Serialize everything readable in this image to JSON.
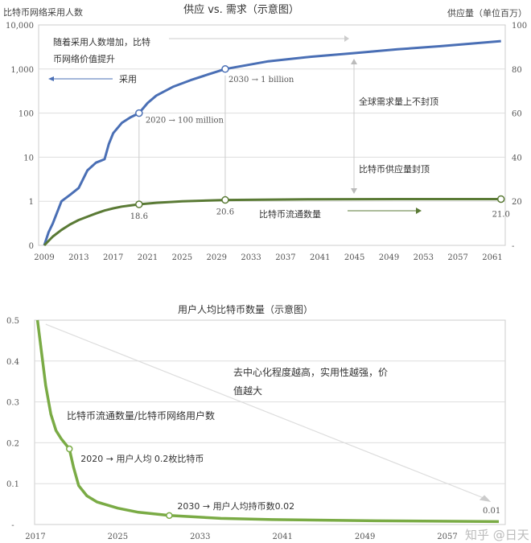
{
  "chart_data": [
    {
      "type": "line",
      "title": "供应 vs. 需求（示意图）",
      "ylabel_left": "比特币网络采用人数",
      "ylabel_right": "供应量（单位百万）",
      "x_ticks": [
        "2009",
        "2013",
        "2017",
        "2021",
        "2025",
        "2029",
        "2033",
        "2037",
        "2041",
        "2045",
        "2049",
        "2053",
        "2057",
        "2061"
      ],
      "y_left_ticks": [
        "0",
        "1",
        "10",
        "100",
        "1,000",
        "10,000"
      ],
      "y_right_ticks": [
        "-",
        "20",
        "40",
        "60",
        "80",
        "100"
      ],
      "xlim": [
        2009,
        2062
      ],
      "ylim_left": [
        0,
        10000
      ],
      "ylim_right": [
        0,
        100
      ],
      "grid": true,
      "series": [
        {
          "name": "采用",
          "axis": "left",
          "color": "#4a6fb5",
          "x": [
            2009,
            2009.5,
            2010,
            2011,
            2012,
            2013,
            2014,
            2015,
            2016,
            2016.5,
            2017,
            2018,
            2019,
            2020,
            2021,
            2022,
            2024,
            2026,
            2028,
            2030,
            2035,
            2040,
            2045,
            2050,
            2055,
            2062
          ],
          "y": [
            0,
            0.3,
            0.5,
            1,
            1.4,
            2,
            5,
            7.5,
            9,
            20,
            35,
            60,
            80,
            100,
            170,
            250,
            400,
            560,
            750,
            1000,
            1500,
            1900,
            2300,
            2800,
            3300,
            4300
          ]
        },
        {
          "name": "比特币流通数量",
          "axis": "right",
          "color": "#5a7a35",
          "x": [
            2009,
            2010,
            2011,
            2012,
            2013,
            2014,
            2015,
            2016,
            2017,
            2018,
            2019,
            2020,
            2022,
            2025,
            2030,
            2040,
            2050,
            2062
          ],
          "y": [
            0,
            4,
            7,
            9.5,
            11.5,
            13,
            14.5,
            15.8,
            16.8,
            17.6,
            18.1,
            18.6,
            19.3,
            20,
            20.6,
            20.9,
            21,
            21.0
          ]
        }
      ],
      "markers": [
        {
          "series": 0,
          "x": 2020,
          "y": 100,
          "label": "2020 → 100 million"
        },
        {
          "series": 0,
          "x": 2030,
          "y": 1000,
          "label": "2030 → 1 billion"
        },
        {
          "series": 1,
          "x": 2020,
          "y": 18.6,
          "label": "18.6"
        },
        {
          "series": 1,
          "x": 2030,
          "y": 20.6,
          "label": "20.6"
        },
        {
          "series": 1,
          "x": 2062,
          "y": 21.0,
          "label": "21.0"
        }
      ],
      "annotations": {
        "value_rise": "随着采用人数增加，比特",
        "value_rise2": "币网络价值提升",
        "adoption": "采用",
        "demand": "全球需求量上不封顶",
        "supply": "比特币供应量封顶",
        "circulation": "比特币流通数量"
      }
    },
    {
      "type": "line",
      "title": "用户人均比特币数量（示意图）",
      "x_ticks": [
        "2017",
        "2025",
        "2033",
        "2041",
        "2049",
        "2057"
      ],
      "y_ticks": [
        "-",
        "0.1",
        "0.2",
        "0.3",
        "0.4",
        "0.5"
      ],
      "xlim": [
        2017,
        2063
      ],
      "ylim": [
        0,
        0.5
      ],
      "grid": true,
      "series": [
        {
          "name": "比特币流通数量/比特币网络用户数",
          "color": "#7aab45",
          "x": [
            2017.2,
            2017.6,
            2018,
            2018.5,
            2019,
            2019.5,
            2020.3,
            2020.7,
            2021.2,
            2022,
            2023,
            2025,
            2027,
            2030,
            2035,
            2040,
            2050,
            2062
          ],
          "y": [
            0.5,
            0.42,
            0.34,
            0.27,
            0.23,
            0.21,
            0.185,
            0.14,
            0.095,
            0.07,
            0.055,
            0.04,
            0.03,
            0.022,
            0.015,
            0.012,
            0.009,
            0.007
          ]
        }
      ],
      "markers": [
        {
          "x": 2020.3,
          "y": 0.185,
          "label": "2020 → 用户人均 0.2枚比特币"
        },
        {
          "x": 2030,
          "y": 0.022,
          "label": "2030 → 用户人均持币数0.02"
        }
      ],
      "annotations": {
        "trend": "去中心化程度越高，实用性越强，价",
        "trend2": "值越大",
        "series_label": "比特币流通数量/比特币网络用户数",
        "end_value": "0.01"
      },
      "watermark": "知乎 @日天"
    }
  ]
}
